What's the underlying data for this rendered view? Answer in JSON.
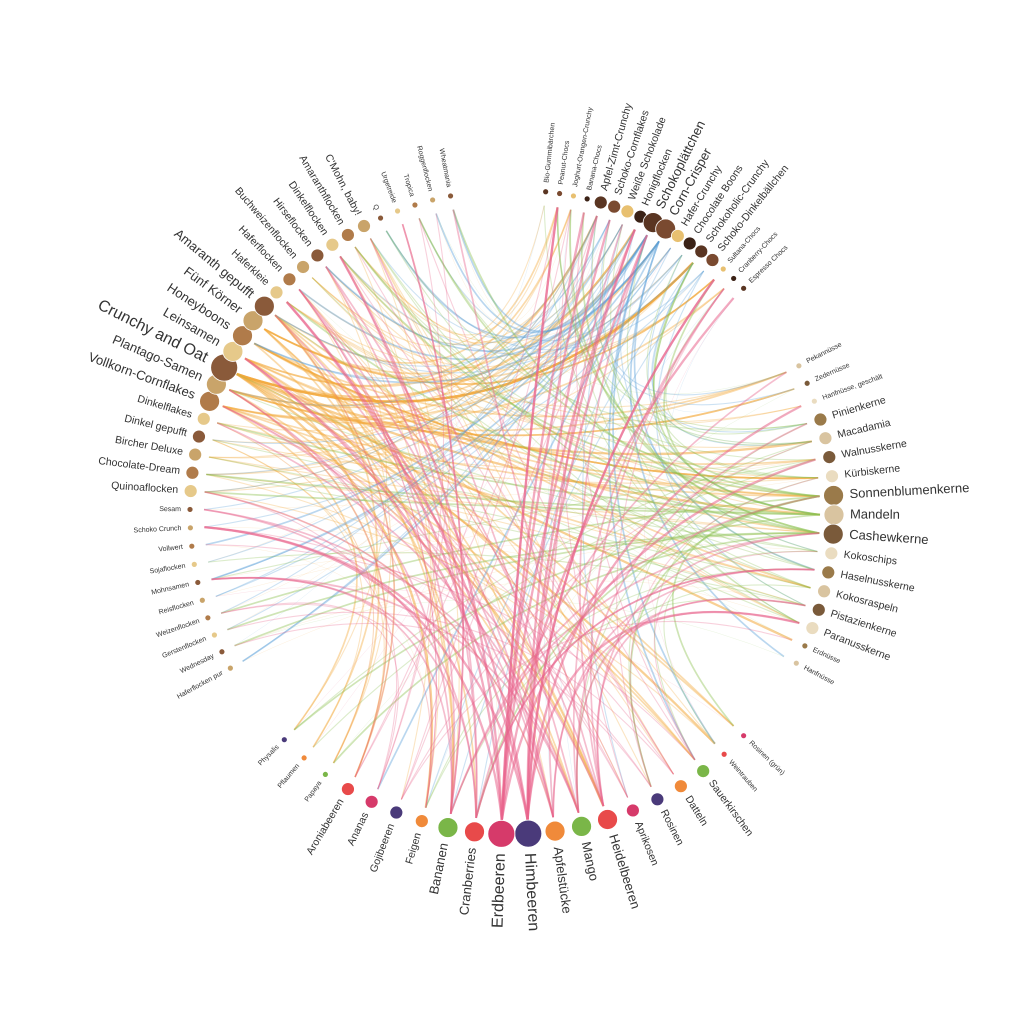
{
  "groups": [
    {
      "color": "#f2a93b",
      "nodes": [
        "Haferflocken pur",
        "Wednesday",
        "Gerstenflocken",
        "Weizenflocken",
        "Reisflocken",
        "Mohnsamen",
        "Sojaflocken",
        "Vollwert",
        "Schoko Crunch",
        "Sesam",
        "Quinoaflocken",
        "Chocolate-Dream",
        "Bircher Deluxe",
        "Dinkel gepufft",
        "Dinkelflakes",
        "Vollkorn-Cornflakes",
        "Plantago-Samen",
        "Crunchy and Oat",
        "Leinsamen",
        "Honeyboons",
        "Fünf Körner",
        "Amaranth gepufft",
        "Haferkleie",
        "Haferflocken",
        "Buchweizenflocken",
        "Hirseflocken",
        "Dinkelflocken",
        "Amaranthflocken",
        "C'Mohn, baby!",
        "Q",
        "Urgetreide",
        "Tropica",
        "Roggenflocken",
        "Wheatmania"
      ]
    },
    {
      "color": "#5aa0d8",
      "nodes": [
        "Bio-Gummibärchen",
        "Peanut-Chocs",
        "Joghurt-Orangen-Crunchy",
        "Banana-Chocs",
        "Apfel-Zimt-Crunchy",
        "Schoko-Cornflakes",
        "Weiße Schokolade",
        "Honigflocken",
        "Schokoplättchen",
        "Corn-Crisper",
        "Hafer-Crunchy",
        "Chocolate Boons",
        "Schokoholic-Crunchy",
        "Schoko-Dinkelbällchen",
        "Sultana-Chocs",
        "Cranberry-Chocs",
        "Espresso Chocs"
      ]
    },
    {
      "color": "#8cc152",
      "nodes": [
        "Pekannüsse",
        "Zedernüsse",
        "Hanfnüsse, geschält",
        "Pinienkerne",
        "Macadamia",
        "Walnusskerne",
        "Kürbiskerne",
        "Sonnenblumenkerne",
        "Mandeln",
        "Cashewkerne",
        "Kokoschips",
        "Haselnusskerne",
        "Kokosraspeln",
        "Pistazienkerne",
        "Paranusskerne",
        "Erdnüsse",
        "Hanfnüsse"
      ]
    },
    {
      "color": "#e8638c",
      "nodes": [
        "Rosinen (grün)",
        "Weintrauben",
        "Sauerkirschen",
        "Datteln",
        "Rosinen",
        "Aprikosen",
        "Heidelbeeren",
        "Mango",
        "Apfelstücke",
        "Himbeeren",
        "Erdbeeren",
        "Cranberries",
        "Bananen",
        "Feigen",
        "Gojibeeren",
        "Ananas",
        "Aroniabeeren",
        "Papaya",
        "Pflaumen",
        "Physalis"
      ]
    }
  ]
}
